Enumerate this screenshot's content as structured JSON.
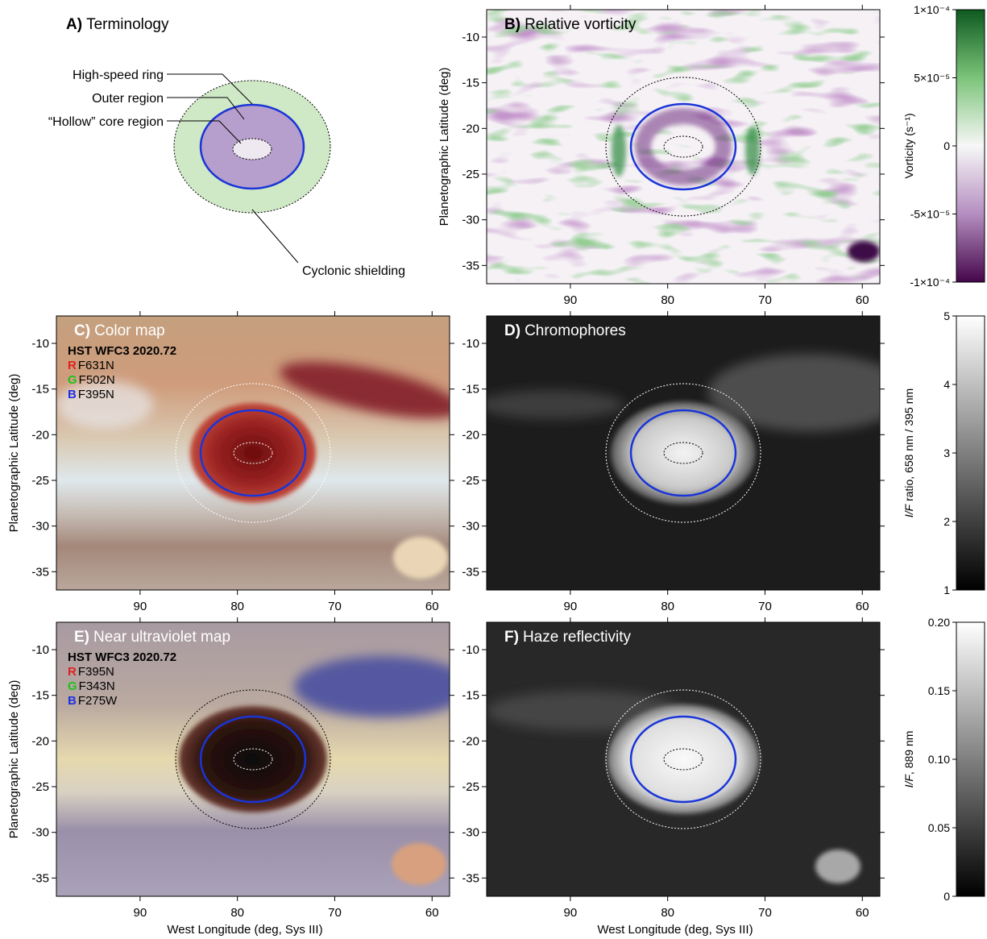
{
  "terminology": {
    "letter": "A)",
    "title": "Terminology",
    "labels": [
      "High-speed ring",
      "Outer region",
      "“Hollow” core region",
      "Cyclonic shielding"
    ]
  },
  "axes": {
    "xlim": [
      98.6,
      58.2
    ],
    "ylim": [
      -7,
      -37
    ],
    "xticks": [
      90,
      80,
      70,
      60
    ],
    "yticks": [
      -10,
      -15,
      -20,
      -25,
      -30,
      -35
    ],
    "xlabel": "West Longitude (deg, Sys III)",
    "ylabel": "Planetographic Latitude (deg)"
  },
  "panels": [
    {
      "letter": "B)",
      "title": "Relative vorticity"
    },
    {
      "letter": "C)",
      "title": "Color map",
      "instrument": "HST WFC3 2020.72",
      "filters": [
        {
          "channel": "R",
          "name": "F631N"
        },
        {
          "channel": "G",
          "name": "F502N"
        },
        {
          "channel": "B",
          "name": "F395N"
        }
      ]
    },
    {
      "letter": "D)",
      "title": "Chromophores"
    },
    {
      "letter": "E)",
      "title": "Near ultraviolet map",
      "instrument": "HST WFC3 2020.72",
      "filters": [
        {
          "channel": "R",
          "name": "F395N"
        },
        {
          "channel": "G",
          "name": "F343N"
        },
        {
          "channel": "B",
          "name": "F275W"
        }
      ]
    },
    {
      "letter": "F)",
      "title": "Haze reflectivity"
    }
  ],
  "colorbars": [
    {
      "label": "Vorticity (s⁻¹)",
      "lim": [
        -0.0001,
        0.0001
      ],
      "ticks": [
        {
          "value": -0.0001,
          "label": "-1×10⁻⁴"
        },
        {
          "value": -5e-05,
          "label": "-5×10⁻⁵"
        },
        0,
        {
          "value": 5e-05,
          "label": "5×10⁻⁵"
        },
        {
          "value": 0.0001,
          "label": "1×10⁻⁴"
        }
      ]
    },
    {
      "label_italic": "I/F",
      "label": " ratio, 658 nm / 395 nm",
      "lim": [
        1,
        5
      ],
      "ticks": [
        1,
        2,
        3,
        4,
        5
      ]
    },
    {
      "label_italic": "I/F",
      "label": ", 889 nm",
      "lim": [
        0,
        0.2
      ],
      "ticks": [
        0,
        0.05,
        {
          "value": 0.1,
          "label": "0.10"
        },
        0.15,
        {
          "value": 0.2,
          "label": "0.20"
        }
      ]
    }
  ]
}
